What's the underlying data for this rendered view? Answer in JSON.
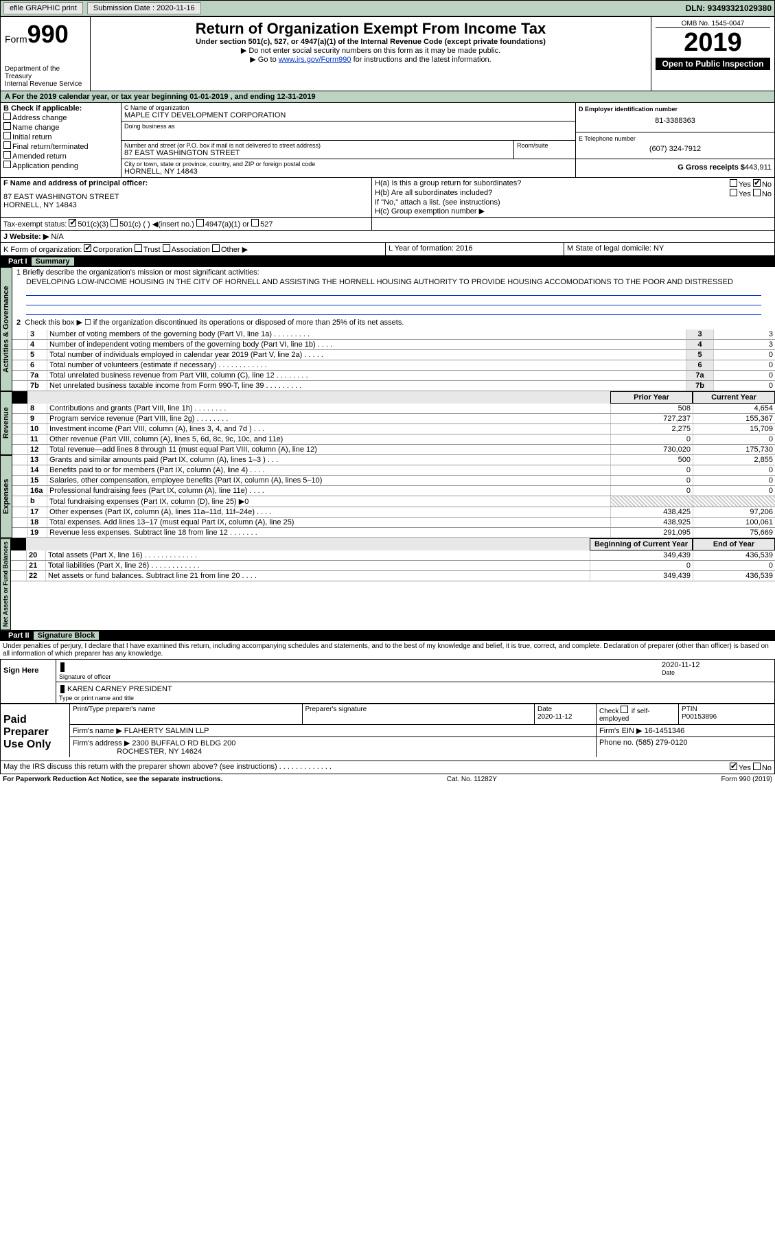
{
  "topbar": {
    "efile": "efile GRAPHIC print",
    "sub_label": "Submission Date : 2020-11-16",
    "dln": "DLN: 93493321029380"
  },
  "header": {
    "form_word": "Form",
    "form_num": "990",
    "dept": "Department of the Treasury",
    "irs": "Internal Revenue Service",
    "title": "Return of Organization Exempt From Income Tax",
    "sub1": "Under section 501(c), 527, or 4947(a)(1) of the Internal Revenue Code (except private foundations)",
    "sub2": "▶ Do not enter social security numbers on this form as it may be made public.",
    "sub3a": "▶ Go to ",
    "sub3link": "www.irs.gov/Form990",
    "sub3b": " for instructions and the latest information.",
    "omb": "OMB No. 1545-0047",
    "year": "2019",
    "open": "Open to Public Inspection"
  },
  "period": "A For the 2019 calendar year, or tax year beginning 01-01-2019   , and ending 12-31-2019",
  "B": {
    "lead": "B Check if applicable:",
    "items": [
      "Address change",
      "Name change",
      "Initial return",
      "Final return/terminated",
      "Amended return",
      "Application pending"
    ]
  },
  "C": {
    "name_label": "C Name of organization",
    "name": "MAPLE CITY DEVELOPMENT CORPORATION",
    "dba_label": "Doing business as",
    "street_label": "Number and street (or P.O. box if mail is not delivered to street address)",
    "room_label": "Room/suite",
    "street": "87 EAST WASHINGTON STREET",
    "city_label": "City or town, state or province, country, and ZIP or foreign postal code",
    "city": "HORNELL, NY  14843"
  },
  "D": {
    "label": "D Employer identification number",
    "value": "81-3388363"
  },
  "E": {
    "label": "E Telephone number",
    "value": "(607) 324-7912"
  },
  "G": {
    "label": "G Gross receipts $",
    "value": "443,911"
  },
  "F": {
    "label": "F  Name and address of principal officer:",
    "addr1": "87 EAST WASHINGTON STREET",
    "addr2": "HORNELL, NY  14843"
  },
  "H": {
    "a": "H(a)  Is this a group return for subordinates?",
    "b": "H(b)  Are all subordinates included?",
    "note": "If \"No,\" attach a list. (see instructions)",
    "c": "H(c)  Group exemption number ▶",
    "yes": "Yes",
    "no": "No"
  },
  "I": {
    "label": "Tax-exempt status:",
    "o1": "501(c)(3)",
    "o2": "501(c) (  ) ◀(insert no.)",
    "o3": "4947(a)(1) or",
    "o4": "527"
  },
  "J": {
    "label": "J   Website: ▶",
    "value": "N/A"
  },
  "K": {
    "label": "K Form of organization:",
    "o1": "Corporation",
    "o2": "Trust",
    "o3": "Association",
    "o4": "Other ▶"
  },
  "L": {
    "label": "L Year of formation:",
    "value": "2016"
  },
  "M": {
    "label": "M State of legal domicile:",
    "value": "NY"
  },
  "part1": {
    "num": "Part I",
    "title": "Summary"
  },
  "mission_label": "1  Briefly describe the organization's mission or most significant activities:",
  "mission": "DEVELOPING LOW-INCOME HOUSING IN THE CITY OF HORNELL AND ASSISTING THE HORNELL HOUSING AUTHORITY TO PROVIDE HOUSING ACCOMODATIONS TO THE POOR AND DISTRESSED",
  "line2": "Check this box ▶ ☐ if the organization discontinued its operations or disposed of more than 25% of its net assets.",
  "sideA": "Activities & Governance",
  "sideR": "Revenue",
  "sideE": "Expenses",
  "sideN": "Net Assets or Fund Balances",
  "govlines": [
    {
      "n": "3",
      "t": "Number of voting members of the governing body (Part VI, line 1a)  .   .   .   .   .   .   .   .   .",
      "v": "3"
    },
    {
      "n": "4",
      "t": "Number of independent voting members of the governing body (Part VI, line 1b)   .   .   .   .",
      "v": "3"
    },
    {
      "n": "5",
      "t": "Total number of individuals employed in calendar year 2019 (Part V, line 2a)   .   .   .   .   .",
      "v": "0"
    },
    {
      "n": "6",
      "t": "Total number of volunteers (estimate if necessary)    .    .    .    .    .    .    .    .    .    .    .    .",
      "v": "0"
    },
    {
      "n": "7a",
      "t": "Total unrelated business revenue from Part VIII, column (C), line 12   .   .   .   .   .   .   .   .",
      "v": "0"
    },
    {
      "n": "7b",
      "t": "Net unrelated business taxable income from Form 990-T, line 39   .   .   .   .   .   .   .   .   .",
      "v": "0"
    }
  ],
  "prior_label": "Prior Year",
  "current_label": "Current Year",
  "revlines": [
    {
      "n": "8",
      "t": "Contributions and grants (Part VIII, line 1h)   .   .   .   .   .   .   .   .",
      "p": "508",
      "c": "4,654"
    },
    {
      "n": "9",
      "t": "Program service revenue (Part VIII, line 2g)   .   .   .   .   .   .   .   .",
      "p": "727,237",
      "c": "155,367"
    },
    {
      "n": "10",
      "t": "Investment income (Part VIII, column (A), lines 3, 4, and 7d )   .   .   .",
      "p": "2,275",
      "c": "15,709"
    },
    {
      "n": "11",
      "t": "Other revenue (Part VIII, column (A), lines 5, 6d, 8c, 9c, 10c, and 11e)",
      "p": "0",
      "c": "0"
    },
    {
      "n": "12",
      "t": "Total revenue—add lines 8 through 11 (must equal Part VIII, column (A), line 12)",
      "p": "730,020",
      "c": "175,730"
    }
  ],
  "explines": [
    {
      "n": "13",
      "t": "Grants and similar amounts paid (Part IX, column (A), lines 1–3 )   .   .   .",
      "p": "500",
      "c": "2,855"
    },
    {
      "n": "14",
      "t": "Benefits paid to or for members (Part IX, column (A), line 4)   .   .   .   .",
      "p": "0",
      "c": "0"
    },
    {
      "n": "15",
      "t": "Salaries, other compensation, employee benefits (Part IX, column (A), lines 5–10)",
      "p": "0",
      "c": "0"
    },
    {
      "n": "16a",
      "t": "Professional fundraising fees (Part IX, column (A), line 11e)   .   .   .   .",
      "p": "0",
      "c": "0"
    },
    {
      "n": "b",
      "t": "Total fundraising expenses (Part IX, column (D), line 25) ▶0",
      "p": "",
      "c": "",
      "hatch": true
    },
    {
      "n": "17",
      "t": "Other expenses (Part IX, column (A), lines 11a–11d, 11f–24e)  .   .   .   .",
      "p": "438,425",
      "c": "97,206"
    },
    {
      "n": "18",
      "t": "Total expenses. Add lines 13–17 (must equal Part IX, column (A), line 25)",
      "p": "438,925",
      "c": "100,061"
    },
    {
      "n": "19",
      "t": "Revenue less expenses. Subtract line 18 from line 12  .   .   .   .   .   .   .",
      "p": "291,095",
      "c": "75,669"
    }
  ],
  "boc_label": "Beginning of Current Year",
  "eoy_label": "End of Year",
  "netlines": [
    {
      "n": "20",
      "t": "Total assets (Part X, line 16)  .   .   .   .   .   .   .   .   .   .   .   .   .",
      "p": "349,439",
      "c": "436,539"
    },
    {
      "n": "21",
      "t": "Total liabilities (Part X, line 26)   .   .   .   .   .   .   .   .   .   .   .   .",
      "p": "0",
      "c": "0"
    },
    {
      "n": "22",
      "t": "Net assets or fund balances. Subtract line 21 from line 20   .   .   .   .",
      "p": "349,439",
      "c": "436,539"
    }
  ],
  "part2": {
    "num": "Part II",
    "title": "Signature Block"
  },
  "perjury": "Under penalties of perjury, I declare that I have examined this return, including accompanying schedules and statements, and to the best of my knowledge and belief, it is true, correct, and complete. Declaration of preparer (other than officer) is based on all information of which preparer has any knowledge.",
  "sign": {
    "here": "Sign Here",
    "sig_label": "Signature of officer",
    "date": "2020-11-12",
    "date_label": "Date",
    "name": "KAREN CARNEY PRESIDENT",
    "name_label": "Type or print name and title"
  },
  "paid": {
    "label": "Paid Preparer Use Only",
    "h1": "Print/Type preparer's name",
    "h2": "Preparer's signature",
    "h3": "Date",
    "h3v": "2020-11-12",
    "h4a": "Check",
    "h4b": "if self-employed",
    "h5": "PTIN",
    "h5v": "P00153896",
    "firm_label": "Firm's name     ▶",
    "firm": "FLAHERTY SALMIN LLP",
    "ein_label": "Firm's EIN ▶",
    "ein": "16-1451346",
    "addr_label": "Firm's address ▶",
    "addr1": "2300 BUFFALO RD BLDG 200",
    "addr2": "ROCHESTER, NY  14624",
    "phone_label": "Phone no.",
    "phone": "(585) 279-0120"
  },
  "discuss": "May the IRS discuss this return with the preparer shown above? (see instructions)   .   .   .   .   .   .   .   .   .   .   .   .   .",
  "footer": {
    "left": "For Paperwork Reduction Act Notice, see the separate instructions.",
    "mid": "Cat. No. 11282Y",
    "right": "Form 990 (2019)"
  },
  "colors": {
    "bg": "#ffffff",
    "green": "#bcd3c2",
    "link": "#0033cc",
    "gray": "#e8e8e8",
    "black": "#000000"
  }
}
